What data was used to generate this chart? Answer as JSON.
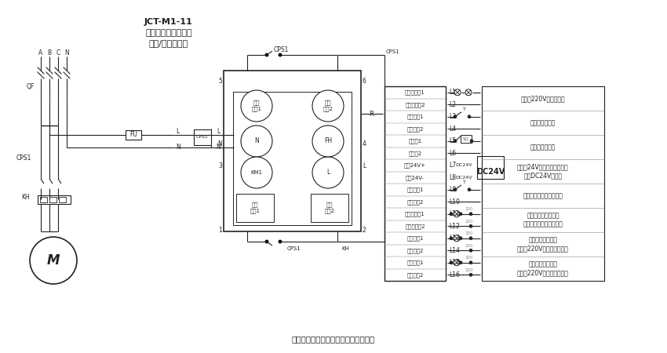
{
  "title_line1": "JCT-M1-11",
  "title_line2": "消防兼平时两用单速",
  "title_line3": "风机/水泵控制器",
  "footer": "本图仅供参考，请按实际需求修改使用",
  "bg_color": "#ffffff",
  "lc": "#333333",
  "input_terminals": [
    "硬启指示灯1",
    "硬启指示灯2",
    "硬线启动1",
    "硬线启动2",
    "防火阀1",
    "防火阀2",
    "消防24V+",
    "消防24V-",
    "远程楼宇1",
    "远程楼宇2",
    "手自动反馈1",
    "手自动反馈2",
    "运行反馈1",
    "运行反馈2",
    "故障反馈1",
    "故障反馈2"
  ],
  "terminal_labels": [
    "L1",
    "L2",
    "L3",
    "L4",
    "L5",
    "L6",
    "L7",
    "L8",
    "L9",
    "L10",
    "L11",
    "L12",
    "L13",
    "L14",
    "L15",
    "L16"
  ],
  "right_desc": [
    [
      0,
      1,
      "接外控220V运行指示灯"
    ],
    [
      2,
      3,
      "接外控启动按钮"
    ],
    [
      4,
      5,
      "防火阀限位开关"
    ],
    [
      6,
      7,
      "接消防24V信号（光耦接收）\n（需DC24V电源）"
    ],
    [
      8,
      9,
      "接楼宇集中控制启动信号"
    ],
    [
      10,
      11,
      "手自动状态信号反馈\n（手动断开、自动闭合）"
    ],
    [
      12,
      13,
      "运行状态信号反馈\n（外接220V电源和信号灯）"
    ],
    [
      14,
      15,
      "故障状态信号反馈\n（外接220V电源和信号灯）"
    ]
  ]
}
